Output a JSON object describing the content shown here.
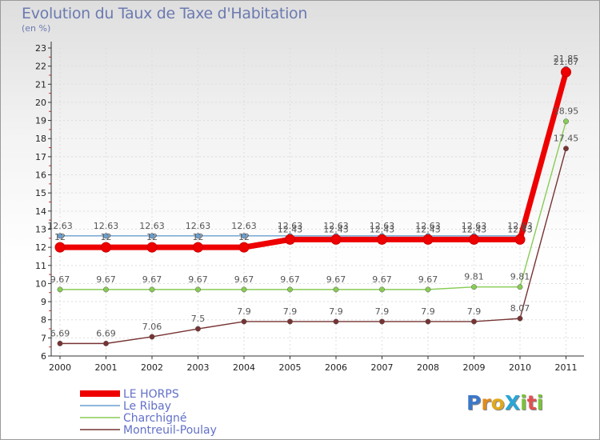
{
  "title": "Evolution du Taux de Taxe d'Habitation",
  "subtitle": "(en %)",
  "logo_text": "ProXiti",
  "logo_colors": [
    "#3c78c8",
    "#e08a1e",
    "#e0a81e",
    "#2aa6d6",
    "#7cc23a",
    "#e05050",
    "#7cc23a"
  ],
  "chart_data": {
    "type": "line",
    "title": "Evolution du Taux de Taxe d'Habitation",
    "ylabel": "(en %)",
    "ylim": [
      6,
      23
    ],
    "yticks": [
      "6",
      "7",
      "8",
      "9",
      "10",
      "11",
      "12",
      "13",
      "14",
      "15",
      "16",
      "17",
      "18",
      "19",
      "20",
      "21",
      "22",
      "23"
    ],
    "categories": [
      "2000",
      "2001",
      "2002",
      "2003",
      "2004",
      "2005",
      "2006",
      "2007",
      "2008",
      "2009",
      "2010",
      "2011"
    ],
    "grid": true,
    "series": [
      {
        "name": "LE HORPS",
        "color": "#ee0000",
        "width": "thick",
        "values": [
          12,
          12,
          12,
          12,
          12,
          12.43,
          12.43,
          12.43,
          12.43,
          12.43,
          12.43,
          21.67
        ],
        "labels": [
          "12",
          "12",
          "12",
          "12",
          "12",
          "12.43",
          "12.43",
          "12.43",
          "12.43",
          "12.43",
          "12.43",
          "21.67"
        ]
      },
      {
        "name": "Le Ribay",
        "color": "#6a9fd0",
        "width": "thin",
        "values": [
          12.63,
          12.63,
          12.63,
          12.63,
          12.63,
          12.63,
          12.63,
          12.63,
          12.63,
          12.63,
          12.63,
          21.85
        ],
        "labels": [
          "12.63",
          "12.63",
          "12.63",
          "12.63",
          "12.63",
          "12.63",
          "12.63",
          "12.63",
          "12.63",
          "12.63",
          "12.63",
          "21.85"
        ]
      },
      {
        "name": "Charchigné",
        "color": "#88cc55",
        "width": "thin",
        "values": [
          9.67,
          9.67,
          9.67,
          9.67,
          9.67,
          9.67,
          9.67,
          9.67,
          9.67,
          9.81,
          9.81,
          18.95
        ],
        "labels": [
          "9.67",
          "9.67",
          "9.67",
          "9.67",
          "9.67",
          "9.67",
          "9.67",
          "9.67",
          "9.67",
          "9.81",
          "9.81",
          "18.95"
        ]
      },
      {
        "name": "Montreuil-Poulay",
        "color": "#773333",
        "width": "thin",
        "values": [
          6.69,
          6.69,
          7.06,
          7.5,
          7.9,
          7.9,
          7.9,
          7.9,
          7.9,
          7.9,
          8.07,
          17.45
        ],
        "labels": [
          "6.69",
          "6.69",
          "7.06",
          "7.5",
          "7.9",
          "7.9",
          "7.9",
          "7.9",
          "7.9",
          "7.9",
          "8.07",
          "17.45"
        ]
      }
    ],
    "legend": "bottom-left"
  }
}
